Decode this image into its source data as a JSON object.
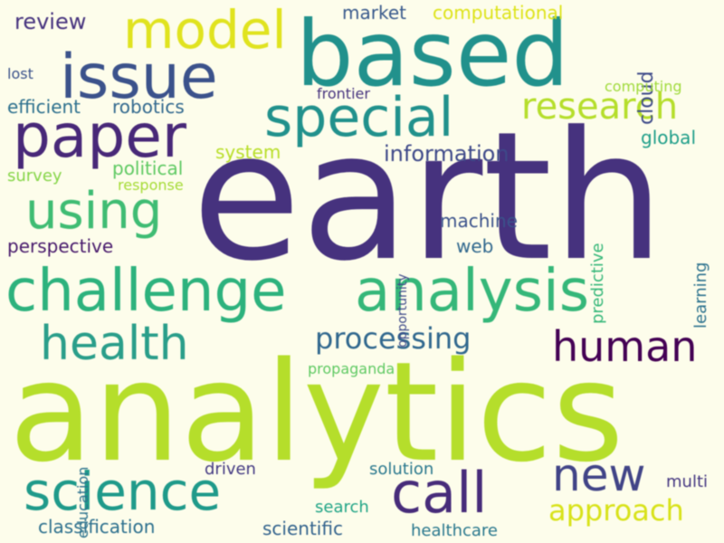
{
  "words": [
    {
      "text": "earth",
      "color": "#46327e"
    },
    {
      "text": "analytics",
      "color": "#b5de2b"
    },
    {
      "text": "based",
      "color": "#21918c"
    },
    {
      "text": "challenge",
      "color": "#2db27d"
    },
    {
      "text": "analysis",
      "color": "#35b779"
    },
    {
      "text": "issue",
      "color": "#3b528b"
    },
    {
      "text": "paper",
      "color": "#482878"
    },
    {
      "text": "special",
      "color": "#21918c"
    },
    {
      "text": "model",
      "color": "#e0e31f"
    },
    {
      "text": "using",
      "color": "#3fbc73"
    },
    {
      "text": "health",
      "color": "#2a9e8a"
    },
    {
      "text": "human",
      "color": "#440154"
    },
    {
      "text": "science",
      "color": "#1f9a8a"
    },
    {
      "text": "call",
      "color": "#472c7a"
    },
    {
      "text": "new",
      "color": "#414487"
    },
    {
      "text": "research",
      "color": "#b5de2b"
    },
    {
      "text": "processing",
      "color": "#31688e"
    },
    {
      "text": "approach",
      "color": "#d8e219"
    },
    {
      "text": "information",
      "color": "#3e4989"
    },
    {
      "text": "review",
      "color": "#46337e"
    },
    {
      "text": "market",
      "color": "#38598c"
    },
    {
      "text": "computational",
      "color": "#dde318"
    },
    {
      "text": "cloud",
      "color": "#3e4a89"
    },
    {
      "text": "lost",
      "color": "#3b528b"
    },
    {
      "text": "efficient",
      "color": "#2d708e"
    },
    {
      "text": "robotics",
      "color": "#31688e"
    },
    {
      "text": "frontier",
      "color": "#46337e"
    },
    {
      "text": "computing",
      "color": "#9fda3a"
    },
    {
      "text": "system",
      "color": "#b8de29"
    },
    {
      "text": "global",
      "color": "#1f9e89"
    },
    {
      "text": "survey",
      "color": "#86d549"
    },
    {
      "text": "political",
      "color": "#5ec962"
    },
    {
      "text": "response",
      "color": "#a5db36"
    },
    {
      "text": "opportunity",
      "color": "#3e4a89"
    },
    {
      "text": "predictive",
      "color": "#35b779"
    },
    {
      "text": "learning",
      "color": "#2c728e"
    },
    {
      "text": "perspective",
      "color": "#481a6c"
    },
    {
      "text": "machine",
      "color": "#3b528b"
    },
    {
      "text": "web",
      "color": "#31688e"
    },
    {
      "text": "propaganda",
      "color": "#5ec962"
    },
    {
      "text": "education",
      "color": "#2c728e"
    },
    {
      "text": "driven",
      "color": "#443a83"
    },
    {
      "text": "solution",
      "color": "#2a788e"
    },
    {
      "text": "multi",
      "color": "#453781"
    },
    {
      "text": "search",
      "color": "#20a486"
    },
    {
      "text": "classification",
      "color": "#2d708e"
    },
    {
      "text": "scientific",
      "color": "#33638d"
    },
    {
      "text": "healthcare",
      "color": "#2a788e"
    }
  ]
}
